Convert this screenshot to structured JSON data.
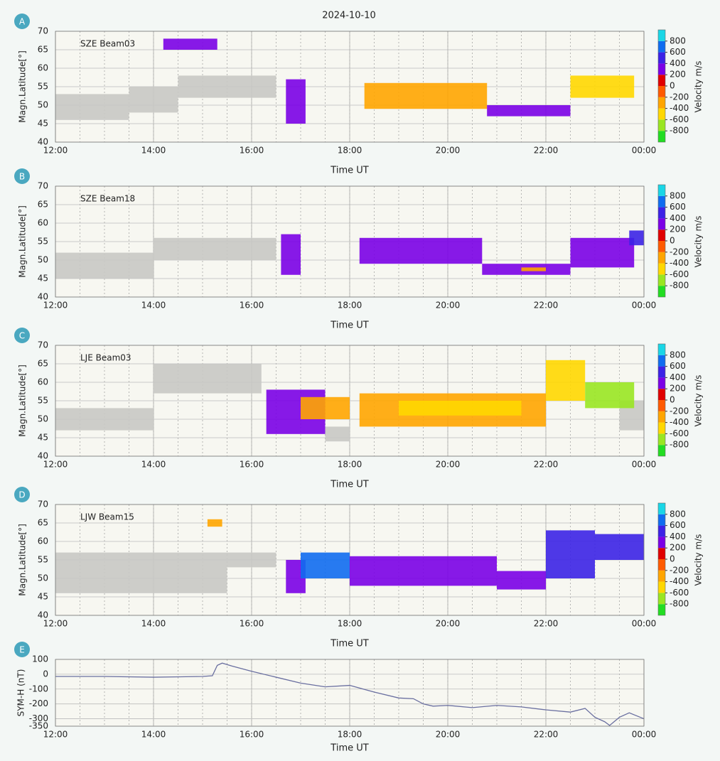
{
  "title": "2024-10-10",
  "chart_data": [
    {
      "type": "heatmap",
      "panel_label": "A",
      "annotation": "SZE Beam03",
      "xlabel": "Time UT",
      "ylabel": "Magn.Latitude[°]",
      "xlim": [
        12,
        24
      ],
      "xticks": [
        {
          "value": 12,
          "label": "12:00"
        },
        {
          "value": 14,
          "label": "14:00"
        },
        {
          "value": 16,
          "label": "16:00"
        },
        {
          "value": 18,
          "label": "18:00"
        },
        {
          "value": 20,
          "label": "20:00"
        },
        {
          "value": 22,
          "label": "22:00"
        },
        {
          "value": 24,
          "label": "00:00"
        }
      ],
      "minor_step": 0.5,
      "ylim": [
        40,
        70
      ],
      "yticks": [
        40,
        45,
        50,
        55,
        60,
        65,
        70
      ],
      "grid": true,
      "ground_scatter_color": "#c8c8c4",
      "x_start": [
        12.0,
        13.5,
        14.5,
        14.2,
        16.7,
        18.3,
        20.8,
        22.5
      ],
      "x_end": [
        13.5,
        14.5,
        16.5,
        15.3,
        17.1,
        20.8,
        22.5,
        23.8
      ],
      "lat_low": [
        46,
        48,
        52,
        65,
        45,
        49,
        47,
        52
      ],
      "lat_high": [
        53,
        55,
        58,
        68,
        57,
        56,
        50,
        58
      ],
      "velocity": [
        null,
        null,
        null,
        300,
        200,
        -300,
        200,
        -500
      ],
      "colorbar_label": "Velocity m/s",
      "clim": [
        -1000,
        1000
      ],
      "colormap": [
        "#22dd22",
        "#99e622",
        "#ffd700",
        "#ffa500",
        "#ff5a00",
        "#e00000",
        "#7a00e6",
        "#3b22e6",
        "#0f6cf0",
        "#19d6e6"
      ],
      "cticks": [
        800,
        600,
        400,
        200,
        0,
        -200,
        -400,
        -600,
        -800
      ]
    },
    {
      "type": "heatmap",
      "panel_label": "B",
      "annotation": "SZE Beam18",
      "xlabel": "Time UT",
      "ylabel": "Magn.Latitude[°]",
      "xlim": [
        12,
        24
      ],
      "xticks": [
        {
          "value": 12,
          "label": "12:00"
        },
        {
          "value": 14,
          "label": "14:00"
        },
        {
          "value": 16,
          "label": "16:00"
        },
        {
          "value": 18,
          "label": "18:00"
        },
        {
          "value": 20,
          "label": "20:00"
        },
        {
          "value": 22,
          "label": "22:00"
        },
        {
          "value": 24,
          "label": "00:00"
        }
      ],
      "minor_step": 0.5,
      "ylim": [
        40,
        70
      ],
      "yticks": [
        40,
        45,
        50,
        55,
        60,
        65,
        70
      ],
      "grid": true,
      "ground_scatter_color": "#c8c8c4",
      "x_start": [
        12.0,
        14.0,
        16.6,
        18.2,
        20.7,
        21.5,
        22.5,
        23.7
      ],
      "x_end": [
        14.0,
        16.5,
        17.0,
        20.7,
        22.5,
        22.0,
        23.8,
        24.0
      ],
      "lat_low": [
        45,
        50,
        46,
        49,
        46,
        47,
        48,
        54
      ],
      "lat_high": [
        52,
        56,
        57,
        56,
        49,
        48,
        56,
        58
      ],
      "velocity": [
        null,
        null,
        250,
        300,
        300,
        -300,
        300,
        500
      ],
      "colorbar_label": "Velocity m/s",
      "clim": [
        -1000,
        1000
      ],
      "colormap": [
        "#22dd22",
        "#99e622",
        "#ffd700",
        "#ffa500",
        "#ff5a00",
        "#e00000",
        "#7a00e6",
        "#3b22e6",
        "#0f6cf0",
        "#19d6e6"
      ],
      "cticks": [
        800,
        600,
        400,
        200,
        0,
        -200,
        -400,
        -600,
        -800
      ]
    },
    {
      "type": "heatmap",
      "panel_label": "C",
      "annotation": "LJE Beam03",
      "xlabel": "Time UT",
      "ylabel": "Magn.Latitude[°]",
      "xlim": [
        12,
        24
      ],
      "xticks": [
        {
          "value": 12,
          "label": "12:00"
        },
        {
          "value": 14,
          "label": "14:00"
        },
        {
          "value": 16,
          "label": "16:00"
        },
        {
          "value": 18,
          "label": "18:00"
        },
        {
          "value": 20,
          "label": "20:00"
        },
        {
          "value": 22,
          "label": "22:00"
        },
        {
          "value": 24,
          "label": "00:00"
        }
      ],
      "minor_step": 0.5,
      "ylim": [
        40,
        70
      ],
      "yticks": [
        40,
        45,
        50,
        55,
        60,
        65,
        70
      ],
      "grid": true,
      "ground_scatter_color": "#c8c8c4",
      "x_start": [
        12.0,
        14.0,
        17.5,
        23.5,
        16.3,
        17.0,
        18.2,
        19.0,
        22.0,
        22.8
      ],
      "x_end": [
        14.0,
        16.2,
        18.0,
        24.0,
        17.5,
        18.0,
        22.0,
        21.5,
        22.8,
        23.8
      ],
      "lat_low": [
        47,
        57,
        44,
        47,
        46,
        50,
        48,
        51,
        55,
        53
      ],
      "lat_high": [
        53,
        65,
        48,
        55,
        58,
        56,
        57,
        55,
        66,
        60
      ],
      "velocity": [
        null,
        null,
        null,
        null,
        250,
        -300,
        -350,
        -500,
        -500,
        -700
      ],
      "colorbar_label": "Velocity m/s",
      "clim": [
        -1000,
        1000
      ],
      "colormap": [
        "#22dd22",
        "#99e622",
        "#ffd700",
        "#ffa500",
        "#ff5a00",
        "#e00000",
        "#7a00e6",
        "#3b22e6",
        "#0f6cf0",
        "#19d6e6"
      ],
      "cticks": [
        800,
        600,
        400,
        200,
        0,
        -200,
        -400,
        -600,
        -800
      ]
    },
    {
      "type": "heatmap",
      "panel_label": "D",
      "annotation": "LJW Beam15",
      "xlabel": "Time UT",
      "ylabel": "Magn.Latitude[°]",
      "xlim": [
        12,
        24
      ],
      "xticks": [
        {
          "value": 12,
          "label": "12:00"
        },
        {
          "value": 14,
          "label": "14:00"
        },
        {
          "value": 16,
          "label": "16:00"
        },
        {
          "value": 18,
          "label": "18:00"
        },
        {
          "value": 20,
          "label": "20:00"
        },
        {
          "value": 22,
          "label": "22:00"
        },
        {
          "value": 24,
          "label": "00:00"
        }
      ],
      "minor_step": 0.5,
      "ylim": [
        40,
        70
      ],
      "yticks": [
        40,
        45,
        50,
        55,
        60,
        65,
        70
      ],
      "grid": true,
      "ground_scatter_color": "#c8c8c4",
      "x_start": [
        12.0,
        15.5,
        15.1,
        16.7,
        17.0,
        18.0,
        21.0,
        22.0,
        23.0
      ],
      "x_end": [
        15.5,
        16.5,
        15.4,
        17.1,
        18.0,
        21.0,
        22.0,
        23.0,
        24.0
      ],
      "lat_low": [
        46,
        53,
        64,
        46,
        50,
        48,
        47,
        50,
        55
      ],
      "lat_high": [
        57,
        57,
        66,
        55,
        57,
        56,
        52,
        63,
        62
      ],
      "velocity": [
        null,
        null,
        -300,
        250,
        600,
        350,
        350,
        400,
        500
      ],
      "colorbar_label": "Velocity m/s",
      "clim": [
        -1000,
        1000
      ],
      "colormap": [
        "#22dd22",
        "#99e622",
        "#ffd700",
        "#ffa500",
        "#ff5a00",
        "#e00000",
        "#7a00e6",
        "#3b22e6",
        "#0f6cf0",
        "#19d6e6"
      ],
      "cticks": [
        800,
        600,
        400,
        200,
        0,
        -200,
        -400,
        -600,
        -800
      ]
    },
    {
      "type": "line",
      "panel_label": "E",
      "xlabel": "Time UT",
      "ylabel": "SYM-H (nT)",
      "xlim": [
        12,
        24
      ],
      "xticks": [
        {
          "value": 12,
          "label": "12:00"
        },
        {
          "value": 14,
          "label": "14:00"
        },
        {
          "value": 16,
          "label": "16:00"
        },
        {
          "value": 18,
          "label": "18:00"
        },
        {
          "value": 20,
          "label": "20:00"
        },
        {
          "value": 22,
          "label": "22:00"
        },
        {
          "value": 24,
          "label": "00:00"
        }
      ],
      "minor_step": 0.5,
      "ylim": [
        -350,
        100
      ],
      "yticks": [
        100,
        0,
        -100,
        -200,
        -300,
        -350
      ],
      "grid": true,
      "color": "#6a6fa0",
      "x": [
        12.0,
        13.0,
        14.0,
        15.0,
        15.2,
        15.3,
        15.4,
        15.6,
        16.0,
        16.5,
        17.0,
        17.5,
        18.0,
        18.5,
        19.0,
        19.3,
        19.5,
        19.7,
        20.0,
        20.5,
        21.0,
        21.5,
        22.0,
        22.5,
        22.8,
        23.0,
        23.2,
        23.3,
        23.5,
        23.7,
        24.0
      ],
      "values": [
        -15,
        -15,
        -20,
        -15,
        -10,
        60,
        75,
        55,
        20,
        -20,
        -60,
        -85,
        -75,
        -120,
        -160,
        -165,
        -200,
        -215,
        -210,
        -225,
        -210,
        -220,
        -240,
        -255,
        -230,
        -290,
        -320,
        -345,
        -290,
        -260,
        -300
      ]
    }
  ]
}
